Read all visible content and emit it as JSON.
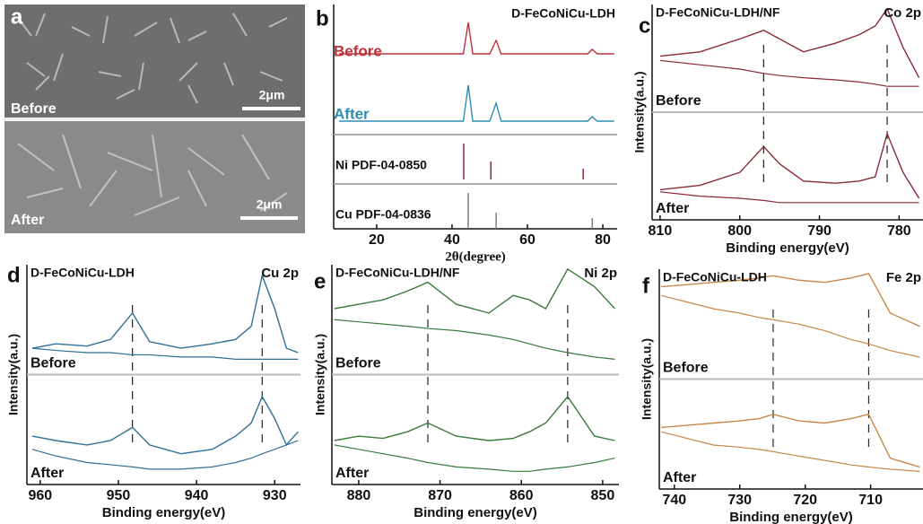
{
  "panel_a": {
    "label": "a",
    "top": "Before",
    "bottom": "After",
    "scale_bars": [
      "2μm",
      "2μm"
    ]
  },
  "chart_data": [
    {
      "type": "xrd",
      "panel": "b",
      "title": "D-FeCoNiCu-LDH",
      "xlabel": "2θ(degree)",
      "xlim": [
        8.6,
        83.8
      ],
      "xticks": [
        20,
        40,
        60,
        80
      ],
      "ylim": [
        0,
        100
      ],
      "x": [
        10,
        20,
        30,
        40,
        43,
        44.3,
        45.5,
        50,
        51.7,
        53,
        60,
        70,
        76,
        77.2,
        78.5,
        83
      ],
      "series": [
        {
          "name": "Before",
          "color": "#c0303a",
          "values": [
            78,
            78,
            78,
            78,
            78,
            92,
            78,
            78,
            84,
            78,
            78,
            78,
            78,
            80,
            78,
            78
          ]
        },
        {
          "name": "After",
          "color": "#2f8bb0",
          "values": [
            48,
            48,
            48,
            48,
            48,
            64,
            48,
            48,
            56,
            48,
            48,
            48,
            48,
            50,
            48,
            48
          ]
        }
      ],
      "references": [
        {
          "name": "Ni PDF-04-0850",
          "color": "#8b2a35",
          "positions": [
            43.1,
            50.3,
            74.8
          ],
          "intensities": [
            100,
            50,
            30
          ]
        },
        {
          "name": "Cu PDF-04-0836",
          "color": "#8a7a7a",
          "positions": [
            44.3,
            51.7,
            77.2
          ],
          "intensities": [
            100,
            45,
            30
          ]
        }
      ]
    },
    {
      "type": "xps",
      "panel": "c",
      "title": "D-FeCoNiCu-LDH/NF",
      "element": "Co 2p",
      "xlabel": "Binding energy(eV)",
      "ylabel": "Intensity(a.u.)",
      "xlim": [
        811,
        777
      ],
      "xticks": [
        810,
        800,
        790,
        780
      ],
      "ylim": [
        0,
        100
      ],
      "x": [
        810,
        805,
        800,
        797,
        795,
        792,
        788,
        785,
        783,
        781.5,
        779.5,
        777.5
      ],
      "series": [
        {
          "name": "Before",
          "color": "#8b2a35",
          "values": [
            76,
            78,
            84,
            88,
            84,
            78,
            82,
            86,
            90,
            98,
            80,
            66
          ]
        },
        {
          "color": "#8b2a35",
          "values": [
            74,
            72,
            70,
            68,
            67,
            66,
            65,
            64,
            63,
            62,
            62,
            62
          ]
        },
        {
          "name": "After",
          "color": "#8b2a35",
          "values": [
            14,
            16,
            22,
            34,
            26,
            18,
            17,
            18,
            20,
            40,
            22,
            10
          ]
        },
        {
          "color": "#8b2a35",
          "values": [
            13,
            11,
            10,
            9,
            8,
            8,
            8,
            8,
            8,
            8,
            8,
            8
          ]
        }
      ],
      "peaks": [
        797,
        781.5
      ]
    },
    {
      "type": "xps",
      "panel": "d",
      "title": "D-FeCoNiCu-LDH",
      "element": "Cu 2p",
      "xlabel": "Binding energy(eV)",
      "ylabel": "Intensity(a.u.)",
      "xlim": [
        961.7,
        926.7
      ],
      "xticks": [
        960,
        950,
        940,
        930
      ],
      "ylim": [
        0,
        100
      ],
      "x": [
        961,
        958,
        954,
        951,
        948.2,
        946,
        942,
        938,
        935,
        933,
        931.6,
        930,
        928.5,
        927
      ],
      "series": [
        {
          "name": "Before",
          "color": "#2f6f93",
          "values": [
            62,
            64,
            63,
            66,
            78,
            65,
            62,
            64,
            66,
            72,
            95,
            80,
            62,
            60
          ]
        },
        {
          "color": "#2f6f93",
          "values": [
            62,
            61,
            60,
            60,
            59,
            59,
            58,
            58,
            57,
            57,
            57,
            57,
            57,
            57
          ]
        },
        {
          "name": "After",
          "color": "#2f6f93",
          "values": [
            22,
            20,
            18,
            20,
            26,
            18,
            14,
            16,
            22,
            28,
            40,
            30,
            18,
            24
          ]
        },
        {
          "color": "#2f6f93",
          "values": [
            16,
            13,
            10,
            9,
            8,
            7,
            7,
            8,
            10,
            12,
            14,
            16,
            18,
            20
          ]
        }
      ],
      "peaks": [
        948.2,
        931.6
      ]
    },
    {
      "type": "xps",
      "panel": "e",
      "title": "D-FeCoNiCu-LDH/NF",
      "element": "Ni 2p",
      "xlabel": "Binding energy(eV)",
      "ylabel": "Intensity(a.u.)",
      "xlim": [
        883.3,
        848
      ],
      "xticks": [
        880,
        870,
        860,
        850
      ],
      "ylim": [
        0,
        100
      ],
      "x": [
        883,
        880,
        877,
        874,
        871.5,
        868,
        864,
        861,
        859,
        857,
        854.3,
        851,
        848.5
      ],
      "series": [
        {
          "name": "Before",
          "color": "#3a7a3a",
          "values": [
            80,
            82,
            84,
            88,
            92,
            82,
            78,
            86,
            84,
            80,
            98,
            90,
            80
          ]
        },
        {
          "color": "#3a7a3a",
          "values": [
            75,
            74,
            73,
            72,
            71,
            70,
            68,
            66,
            64,
            62,
            60,
            58,
            57
          ]
        },
        {
          "name": "After",
          "color": "#3a7a3a",
          "values": [
            20,
            22,
            21,
            24,
            28,
            22,
            20,
            21,
            24,
            28,
            40,
            22,
            20
          ]
        },
        {
          "color": "#3a7a3a",
          "values": [
            18,
            16,
            14,
            12,
            10,
            8,
            7,
            6,
            6,
            7,
            8,
            10,
            12
          ]
        }
      ],
      "peaks": [
        871.5,
        854.3
      ]
    },
    {
      "type": "xps",
      "panel": "f",
      "title": "D-FeCoNiCu-LDH",
      "element": "Fe 2p",
      "xlabel": "Binding energy(eV)",
      "ylabel": "Intensity(a.u.)",
      "xlim": [
        742.3,
        702
      ],
      "xticks": [
        740,
        730,
        720,
        710
      ],
      "ylim": [
        0,
        100
      ],
      "x": [
        742,
        738,
        734,
        730,
        727,
        724.9,
        721,
        717,
        713,
        710.3,
        707,
        702.5
      ],
      "series": [
        {
          "name": "Before",
          "color": "#c8874a",
          "values": [
            92,
            93,
            94,
            95,
            96,
            97,
            95,
            94,
            96,
            98,
            80,
            74
          ]
        },
        {
          "color": "#c8874a",
          "values": [
            88,
            85,
            82,
            80,
            78,
            77,
            75,
            72,
            68,
            66,
            63,
            60
          ]
        },
        {
          "name": "After",
          "color": "#c8874a",
          "values": [
            28,
            29,
            30,
            31,
            32,
            34,
            31,
            30,
            32,
            34,
            14,
            10
          ]
        },
        {
          "color": "#c8874a",
          "values": [
            26,
            23,
            20,
            19,
            18,
            17,
            15,
            13,
            11,
            10,
            9,
            8
          ]
        }
      ],
      "peaks": [
        724.9,
        710.3
      ]
    }
  ]
}
